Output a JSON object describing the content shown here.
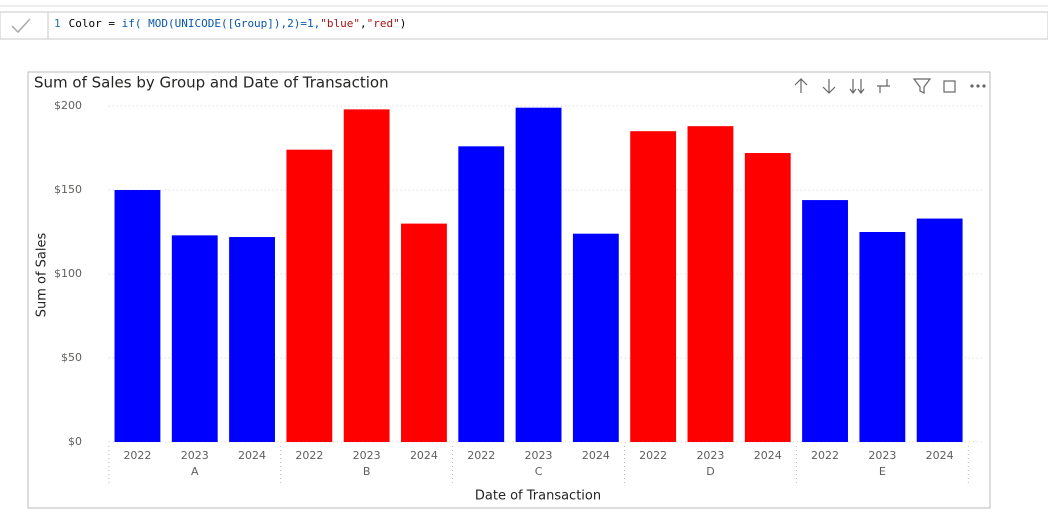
{
  "formula_bar": {
    "line_number": "1",
    "tokens": [
      "Color = ",
      "if( MOD(UNICODE([Group]),2)=1,",
      "\"blue\"",
      ",",
      "\"red\"",
      ")"
    ]
  },
  "chart_data": {
    "type": "bar",
    "title": "Sum of Sales by Group and Date of Transaction",
    "x_label": "Date of Transaction",
    "y_label": "Sum of Sales",
    "categories": [
      "2022",
      "2023",
      "2024",
      "2022",
      "2023",
      "2024",
      "2022",
      "2023",
      "2024",
      "2022",
      "2023",
      "2024",
      "2022",
      "2023",
      "2024"
    ],
    "groups": [
      "A",
      "B",
      "C",
      "D",
      "E"
    ],
    "values": [
      150,
      123,
      122,
      174,
      198,
      130,
      176,
      199,
      124,
      185,
      188,
      172,
      144,
      125,
      133
    ],
    "colors": [
      "#0000ff",
      "#0000ff",
      "#0000ff",
      "#ff0000",
      "#ff0000",
      "#ff0000",
      "#0000ff",
      "#0000ff",
      "#0000ff",
      "#ff0000",
      "#ff0000",
      "#ff0000",
      "#0000ff",
      "#0000ff",
      "#0000ff"
    ],
    "ylim": [
      0,
      200
    ],
    "yticks": [
      {
        "value": 0,
        "label": "$0"
      },
      {
        "value": 50,
        "label": "$50"
      },
      {
        "value": 100,
        "label": "$100"
      },
      {
        "value": 150,
        "label": "$150"
      },
      {
        "value": 200,
        "label": "$200"
      }
    ],
    "grid": true
  }
}
